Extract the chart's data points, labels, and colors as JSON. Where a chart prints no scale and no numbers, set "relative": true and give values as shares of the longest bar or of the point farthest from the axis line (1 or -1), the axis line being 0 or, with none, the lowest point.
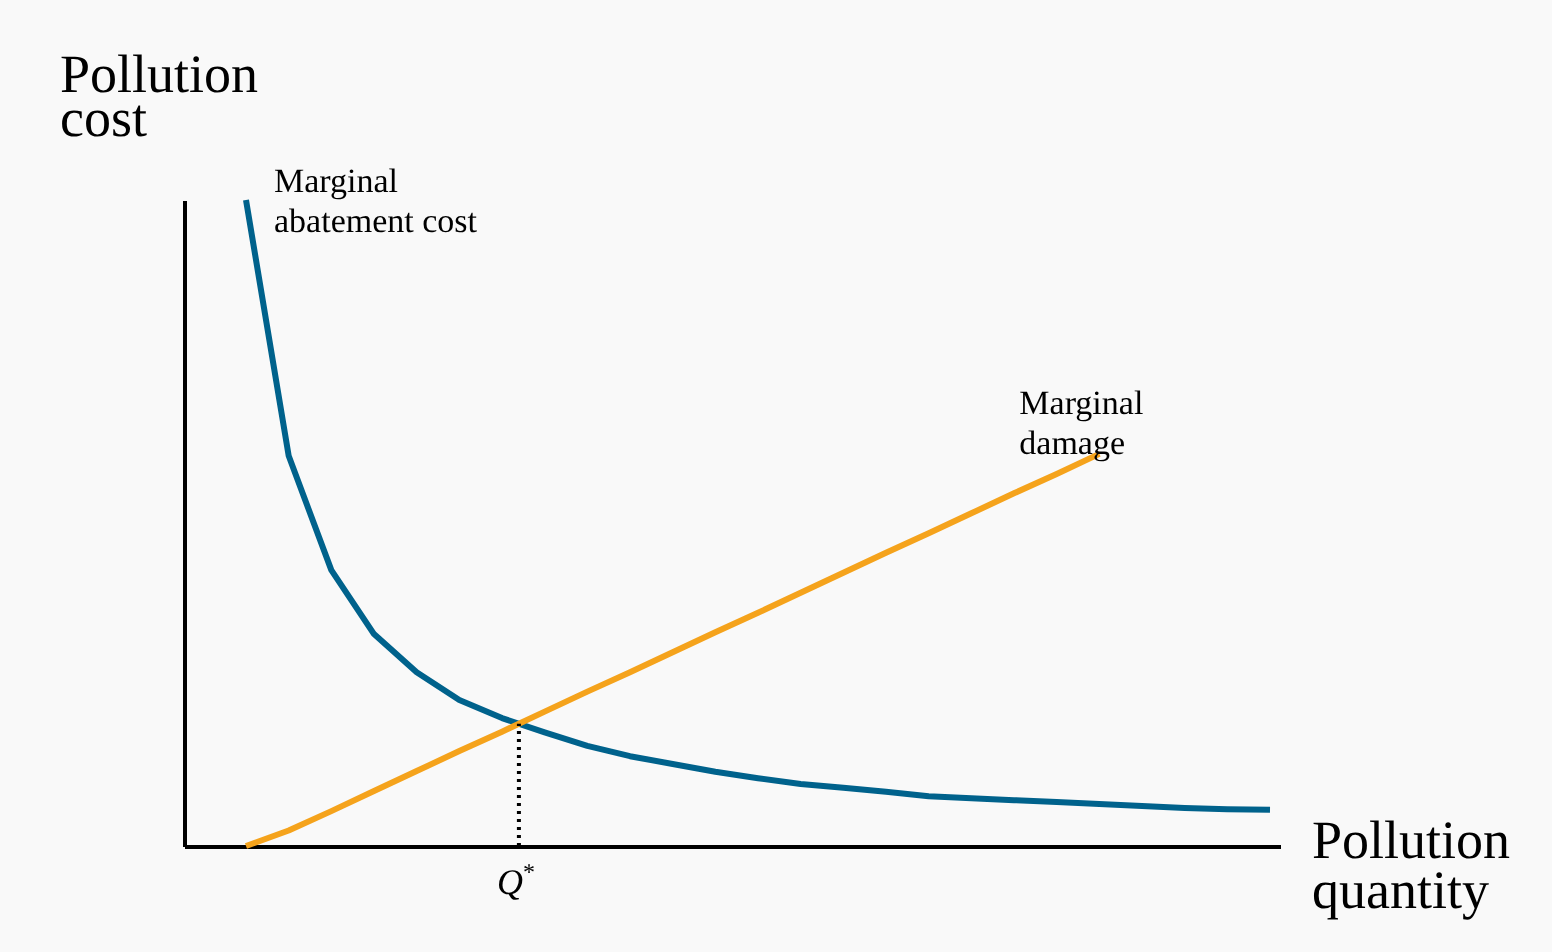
{
  "chart_data": {
    "type": "line",
    "relative": true,
    "xlabel": "Pollution quantity",
    "ylabel": "Pollution cost",
    "tick_labels": false,
    "grid": false,
    "marker": "none",
    "line_style": "solid",
    "categories": [
      null,
      null,
      null,
      null,
      null,
      null,
      null,
      null,
      null,
      null,
      null,
      null,
      null,
      null,
      null,
      null,
      null,
      null,
      null,
      null,
      null,
      null,
      null,
      null,
      null
    ],
    "series": [
      {
        "name": "Marginal abatement cost",
        "color": "#00628c",
        "values": [
          1.0,
          0.604,
          0.427,
          0.328,
          0.269,
          0.226,
          0.198,
          0.176,
          0.155,
          0.139,
          0.127,
          0.115,
          0.105,
          0.096,
          0.09,
          0.084,
          0.077,
          0.074,
          0.071,
          0.068,
          0.065,
          0.062,
          0.059,
          0.057,
          0.056
        ]
      },
      {
        "name": "Marginal damage",
        "color": "#f5a31c",
        "values": [
          0,
          0.024,
          0.054,
          0.085,
          0.116,
          0.147,
          0.177,
          0.208,
          0.239,
          0.269,
          0.3,
          0.331,
          0.361,
          0.392,
          0.423,
          0.454,
          0.484,
          0.515,
          0.546,
          0.576,
          0.607,
          null,
          null,
          null,
          null
        ]
      }
    ],
    "annotations": [
      "Q$^{*}$"
    ]
  }
}
